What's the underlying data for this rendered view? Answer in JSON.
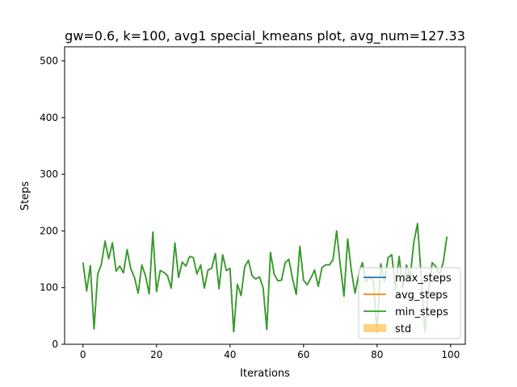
{
  "chart_data": {
    "type": "line",
    "title": "gw=0.6, k=100, avg1 special_kmeans plot, avg_num=127.33",
    "xlabel": "Iterations",
    "ylabel": "Steps",
    "xlim": [
      -5,
      104
    ],
    "ylim": [
      0,
      525
    ],
    "xticks": [
      0,
      20,
      40,
      60,
      80,
      100
    ],
    "yticks": [
      0,
      100,
      200,
      300,
      400,
      500
    ],
    "grid": false,
    "legend_position": "lower-right",
    "x": [
      0,
      1,
      2,
      3,
      4,
      5,
      6,
      7,
      8,
      9,
      10,
      11,
      12,
      13,
      14,
      15,
      16,
      17,
      18,
      19,
      20,
      21,
      22,
      23,
      24,
      25,
      26,
      27,
      28,
      29,
      30,
      31,
      32,
      33,
      34,
      35,
      36,
      37,
      38,
      39,
      40,
      41,
      42,
      43,
      44,
      45,
      46,
      47,
      48,
      49,
      50,
      51,
      52,
      53,
      54,
      55,
      56,
      57,
      58,
      59,
      60,
      61,
      62,
      63,
      64,
      65,
      66,
      67,
      68,
      69,
      70,
      71,
      72,
      73,
      74,
      75,
      76,
      77,
      78,
      79,
      80,
      81,
      82,
      83,
      84,
      85,
      86,
      87,
      88,
      89,
      90,
      91,
      92,
      93,
      94,
      95,
      96,
      97,
      98,
      99
    ],
    "series": [
      {
        "name": "max_steps",
        "color": "#1f77b4",
        "values": [
          144,
          94,
          139,
          27,
          124,
          141,
          182,
          151,
          179,
          129,
          138,
          126,
          167,
          133,
          118,
          90,
          140,
          121,
          89,
          198,
          93,
          130,
          127,
          121,
          99,
          179,
          118,
          145,
          138,
          155,
          153,
          124,
          140,
          99,
          131,
          134,
          160,
          98,
          158,
          130,
          134,
          22,
          106,
          86,
          137,
          148,
          121,
          115,
          119,
          100,
          26,
          162,
          124,
          112,
          113,
          144,
          150,
          116,
          88,
          173,
          113,
          105,
          117,
          131,
          102,
          135,
          140,
          140,
          149,
          200,
          139,
          85,
          186,
          130,
          90,
          123,
          144,
          110,
          120,
          110,
          20,
          142,
          110,
          153,
          158,
          97,
          155,
          100,
          140,
          119,
          180,
          213,
          120,
          23,
          95,
          144,
          137,
          123,
          145,
          190
        ]
      },
      {
        "name": "avg_steps",
        "color": "#ff7f0e",
        "values": [
          144,
          94,
          139,
          27,
          124,
          141,
          182,
          151,
          179,
          129,
          138,
          126,
          167,
          133,
          118,
          90,
          140,
          121,
          89,
          198,
          93,
          130,
          127,
          121,
          99,
          179,
          118,
          145,
          138,
          155,
          153,
          124,
          140,
          99,
          131,
          134,
          160,
          98,
          158,
          130,
          134,
          22,
          106,
          86,
          137,
          148,
          121,
          115,
          119,
          100,
          26,
          162,
          124,
          112,
          113,
          144,
          150,
          116,
          88,
          173,
          113,
          105,
          117,
          131,
          102,
          135,
          140,
          140,
          149,
          200,
          139,
          85,
          186,
          130,
          90,
          123,
          144,
          110,
          120,
          110,
          20,
          142,
          110,
          153,
          158,
          97,
          155,
          100,
          140,
          119,
          180,
          213,
          120,
          23,
          95,
          144,
          137,
          123,
          145,
          190
        ]
      },
      {
        "name": "min_steps",
        "color": "#2ca02c",
        "values": [
          144,
          94,
          139,
          27,
          124,
          141,
          182,
          151,
          179,
          129,
          138,
          126,
          167,
          133,
          118,
          90,
          140,
          121,
          89,
          198,
          93,
          130,
          127,
          121,
          99,
          179,
          118,
          145,
          138,
          155,
          153,
          124,
          140,
          99,
          131,
          134,
          160,
          98,
          158,
          130,
          134,
          22,
          106,
          86,
          137,
          148,
          121,
          115,
          119,
          100,
          26,
          162,
          124,
          112,
          113,
          144,
          150,
          116,
          88,
          173,
          113,
          105,
          117,
          131,
          102,
          135,
          140,
          140,
          149,
          200,
          139,
          85,
          186,
          130,
          90,
          123,
          144,
          110,
          120,
          110,
          20,
          142,
          110,
          153,
          158,
          97,
          155,
          100,
          140,
          119,
          180,
          213,
          120,
          23,
          95,
          144,
          137,
          123,
          145,
          190
        ]
      }
    ],
    "std_band": {
      "name": "std",
      "color": "#ffc04d",
      "width": 0
    }
  }
}
